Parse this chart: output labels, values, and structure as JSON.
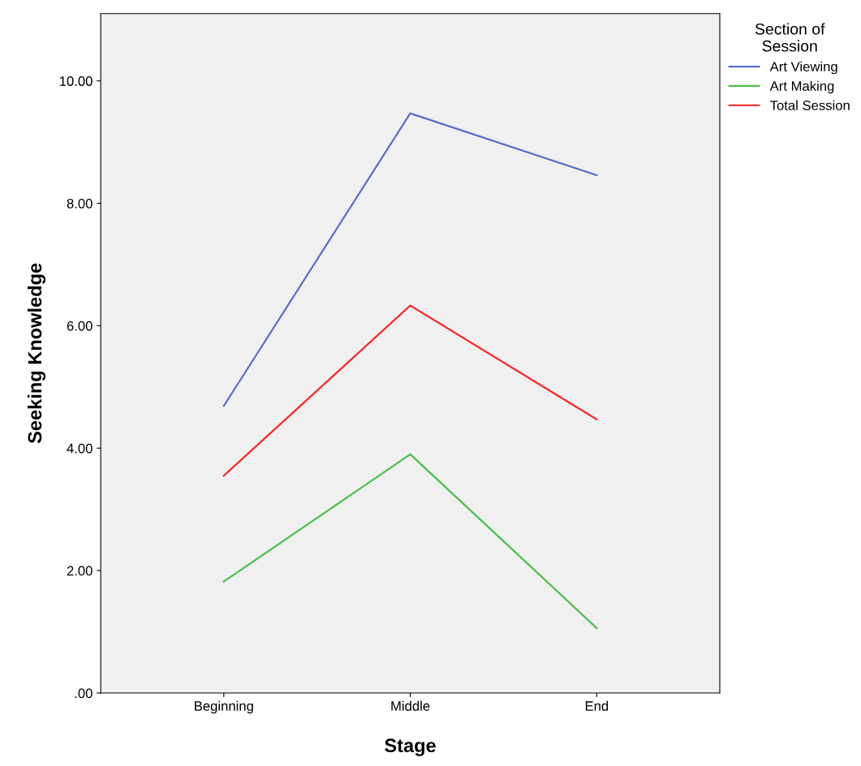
{
  "chart_data": {
    "type": "line",
    "xlabel": "Stage",
    "ylabel": "Seeking Knowledge",
    "legend_title": "Section of\nSession",
    "categories": [
      "Beginning",
      "Middle",
      "End"
    ],
    "series": [
      {
        "name": "Art Viewing",
        "color": "#5a6ec8",
        "values": [
          4.69,
          9.47,
          8.46
        ]
      },
      {
        "name": "Art Making",
        "color": "#4cc04c",
        "values": [
          1.82,
          3.9,
          1.06
        ]
      },
      {
        "name": "Total Session",
        "color": "#ff2020",
        "values": [
          3.55,
          6.33,
          4.47
        ]
      }
    ],
    "ylim": [
      0,
      11.1
    ],
    "yticks": [
      {
        "value": 0,
        "label": ".00"
      },
      {
        "value": 2,
        "label": "2.00"
      },
      {
        "value": 4,
        "label": "4.00"
      },
      {
        "value": 6,
        "label": "6.00"
      },
      {
        "value": 8,
        "label": "8.00"
      },
      {
        "value": 10,
        "label": "10.00"
      }
    ],
    "legend": "right",
    "marker": "none",
    "line_style": "solid",
    "grid": false
  }
}
